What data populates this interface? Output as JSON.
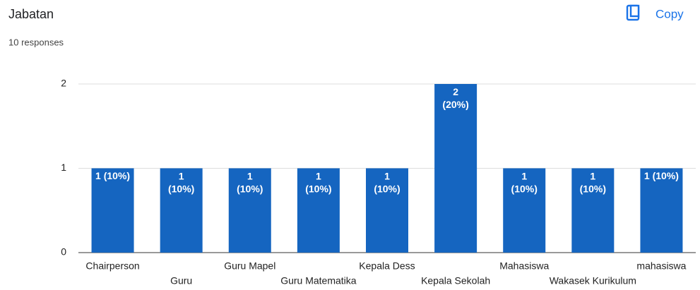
{
  "copy_button": "Copy",
  "chart_data": {
    "type": "bar",
    "title": "Jabatan",
    "subtitle": "10 responses",
    "categories": [
      "Chairperson",
      "Guru",
      "Guru Mapel",
      "Guru Matematika",
      "Kepala Dess",
      "Kepala Sekolah",
      "Mahasiswa",
      "Wakasek Kurikulum",
      "mahasiswa"
    ],
    "values": [
      1,
      1,
      1,
      1,
      1,
      2,
      1,
      1,
      1
    ],
    "value_labels": [
      "1 (10%)",
      "1 (10%)",
      "1 (10%)",
      "1 (10%)",
      "1 (10%)",
      "2 (20%)",
      "1 (10%)",
      "1 (10%)",
      "1 (10%)"
    ],
    "color": "#1565c0",
    "ylim": [
      0,
      2
    ],
    "yticks": [
      0,
      1,
      2
    ],
    "grid": true
  }
}
